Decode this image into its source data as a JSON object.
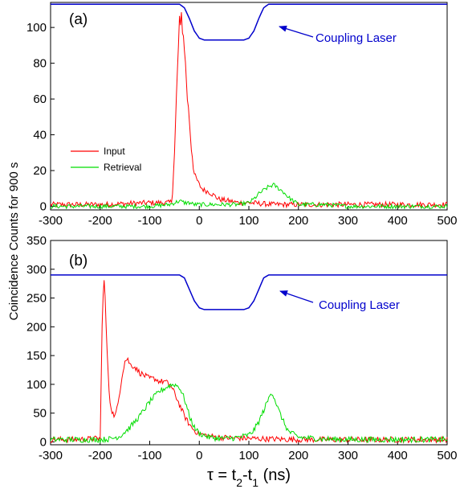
{
  "ylabel": "Coincidence Counts for 900 s",
  "xlabel": {
    "prefix": "τ = t",
    "sub2": "2",
    "mid": "-t",
    "sub1": "1",
    "suffix": " (ns)"
  },
  "chart_data": [
    {
      "type": "line",
      "panel_label": "(a)",
      "xlabel": "",
      "ylabel": "Coincidence Counts for 900 s",
      "xlim": [
        -300,
        500
      ],
      "ylim": [
        -2,
        114
      ],
      "xticks": [
        -300,
        -200,
        -100,
        0,
        100,
        200,
        300,
        400,
        500
      ],
      "yticks": [
        0,
        20,
        40,
        60,
        80,
        100
      ],
      "xtick_labels": [
        "-300",
        "-200",
        "-100",
        "0",
        "100",
        "200",
        "300",
        "400",
        "500"
      ],
      "ytick_labels": [
        "0",
        "20",
        "40",
        "60",
        "80",
        "100"
      ],
      "grid": false,
      "legend": {
        "position": "center-left",
        "entries": [
          "Input",
          "Retrieval"
        ]
      },
      "annotation": {
        "text": "Coupling Laser",
        "arrow_to": [
          120,
          112
        ]
      },
      "series": [
        {
          "name": "Input",
          "color": "#ff0000",
          "x": [
            -300,
            -200,
            -100,
            -60,
            -55,
            -50,
            -45,
            -42,
            -40,
            -38,
            -36,
            -34,
            -32,
            -30,
            -28,
            -26,
            -24,
            -22,
            -20,
            -18,
            -16,
            -14,
            -12,
            -10,
            -5,
            0,
            5,
            10,
            20,
            30,
            40,
            60,
            80,
            100,
            150,
            200,
            300,
            400,
            500
          ],
          "y": [
            1,
            1,
            2,
            2,
            3,
            30,
            70,
            90,
            106,
            100,
            108,
            98,
            95,
            88,
            80,
            70,
            60,
            55,
            48,
            40,
            32,
            28,
            22,
            18,
            15,
            12,
            10,
            9,
            8,
            6,
            4,
            3,
            2,
            2,
            1,
            1,
            1,
            1,
            1
          ],
          "noise": 1.5
        },
        {
          "name": "Retrieval",
          "color": "#00dd00",
          "x": [
            -300,
            -100,
            -60,
            -50,
            -40,
            -30,
            -20,
            -10,
            0,
            20,
            50,
            80,
            100,
            110,
            120,
            130,
            140,
            150,
            160,
            170,
            180,
            190,
            200,
            250,
            300,
            400,
            500
          ],
          "y": [
            0,
            0,
            1,
            2,
            3,
            2,
            2,
            1,
            1,
            1,
            1,
            1,
            2,
            4,
            7,
            9,
            11,
            12,
            10,
            8,
            5,
            3,
            1,
            1,
            0,
            0,
            0
          ],
          "noise": 1.2
        },
        {
          "name": "Coupling Laser",
          "color": "#0000cc",
          "x": [
            -300,
            -40,
            -30,
            -20,
            -10,
            0,
            10,
            90,
            100,
            110,
            120,
            130,
            140,
            500
          ],
          "y": [
            113,
            113,
            111,
            105,
            98,
            94,
            93,
            93,
            94,
            98,
            105,
            111,
            113,
            113
          ],
          "noise": 0
        }
      ]
    },
    {
      "type": "line",
      "panel_label": "(b)",
      "xlabel": "τ = t2-t1 (ns)",
      "ylabel": "Coincidence Counts for 900 s",
      "xlim": [
        -300,
        500
      ],
      "ylim": [
        -5,
        350
      ],
      "xticks": [
        -300,
        -200,
        -100,
        0,
        100,
        200,
        300,
        400,
        500
      ],
      "yticks": [
        0,
        50,
        100,
        150,
        200,
        250,
        300,
        350
      ],
      "xtick_labels": [
        "-300",
        "-200",
        "-100",
        "0",
        "100",
        "200",
        "300",
        "400",
        "500"
      ],
      "ytick_labels": [
        "0",
        "50",
        "100",
        "150",
        "200",
        "250",
        "300",
        "350"
      ],
      "grid": false,
      "annotation": {
        "text": "Coupling Laser",
        "arrow_to": [
          120,
          285
        ]
      },
      "series": [
        {
          "name": "Input",
          "color": "#ff0000",
          "x": [
            -300,
            -250,
            -200,
            -198,
            -196,
            -194,
            -192,
            -190,
            -188,
            -186,
            -184,
            -182,
            -180,
            -175,
            -170,
            -165,
            -160,
            -155,
            -150,
            -145,
            -140,
            -130,
            -120,
            -110,
            -100,
            -90,
            -80,
            -70,
            -60,
            -50,
            -40,
            -30,
            -20,
            -10,
            0,
            20,
            40,
            60,
            100,
            150,
            200,
            300,
            400,
            500
          ],
          "y": [
            4,
            4,
            6,
            100,
            200,
            260,
            280,
            250,
            200,
            160,
            120,
            90,
            70,
            50,
            45,
            60,
            90,
            120,
            140,
            145,
            135,
            130,
            120,
            115,
            110,
            110,
            105,
            105,
            100,
            85,
            65,
            45,
            30,
            20,
            14,
            10,
            8,
            7,
            6,
            5,
            4,
            4,
            4,
            4
          ],
          "noise": 5
        },
        {
          "name": "Retrieval",
          "color": "#00dd00",
          "x": [
            -300,
            -200,
            -180,
            -160,
            -140,
            -120,
            -100,
            -80,
            -60,
            -50,
            -40,
            -30,
            -20,
            -10,
            0,
            20,
            40,
            60,
            80,
            100,
            110,
            120,
            130,
            140,
            145,
            150,
            160,
            170,
            180,
            200,
            250,
            300,
            400,
            500
          ],
          "y": [
            4,
            4,
            5,
            10,
            25,
            45,
            70,
            88,
            98,
            100,
            95,
            75,
            45,
            25,
            15,
            8,
            6,
            6,
            8,
            12,
            20,
            35,
            55,
            75,
            88,
            80,
            55,
            35,
            18,
            8,
            5,
            4,
            4,
            4
          ],
          "noise": 5
        },
        {
          "name": "Coupling Laser",
          "color": "#0000cc",
          "x": [
            -300,
            -40,
            -30,
            -20,
            -10,
            0,
            10,
            90,
            100,
            110,
            120,
            130,
            140,
            500
          ],
          "y": [
            290,
            290,
            285,
            265,
            245,
            233,
            230,
            230,
            233,
            245,
            265,
            285,
            290,
            290
          ],
          "noise": 0
        }
      ]
    }
  ]
}
